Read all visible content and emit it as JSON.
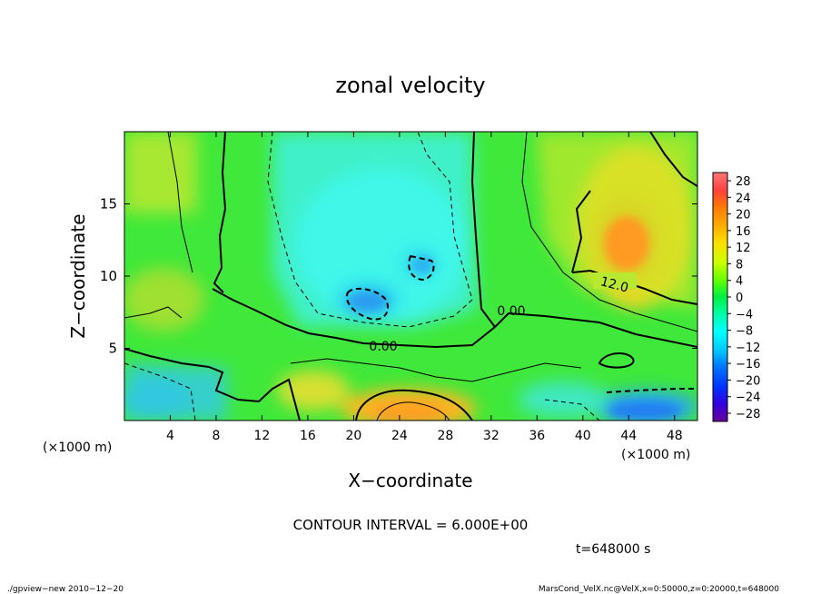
{
  "chart_data": {
    "type": "heatmap",
    "title": "zonal velocity",
    "xlabel": "X−coordinate",
    "ylabel": "Z−coordinate",
    "x_unit_left": "(×1000 m)",
    "x_unit_right": "(×1000 m)",
    "xlim": [
      0,
      50
    ],
    "ylim": [
      0,
      20
    ],
    "x_ticks": [
      4,
      8,
      12,
      16,
      20,
      24,
      28,
      32,
      36,
      40,
      44,
      48
    ],
    "y_ticks": [
      5,
      10,
      15
    ],
    "colorbar_levels": [
      28,
      24,
      20,
      16,
      12,
      8,
      4,
      0,
      -4,
      -8,
      -12,
      -16,
      -20,
      -24,
      -28
    ],
    "colorbar_labels": [
      "28",
      "24",
      "20",
      "16",
      "12",
      "8",
      "4",
      "0",
      "−4",
      "−8",
      "−12",
      "−16",
      "−20",
      "−24",
      "−28"
    ],
    "contour_labels": [
      "12.0",
      "0.00",
      "0.00"
    ],
    "contour_interval_text": "CONTOUR INTERVAL = 6.000E+00",
    "time_text": "t=648000 s"
  },
  "footer": {
    "left": "./gpview−new   2010−12−20",
    "right": "MarsCond_VelX.nc@VelX,x=0:50000,z=0:20000,t=648000"
  },
  "colors": {
    "field_base": "#33ee33",
    "warm": "#ffd700",
    "cool": "#00ffdd",
    "contour": "#000000"
  }
}
